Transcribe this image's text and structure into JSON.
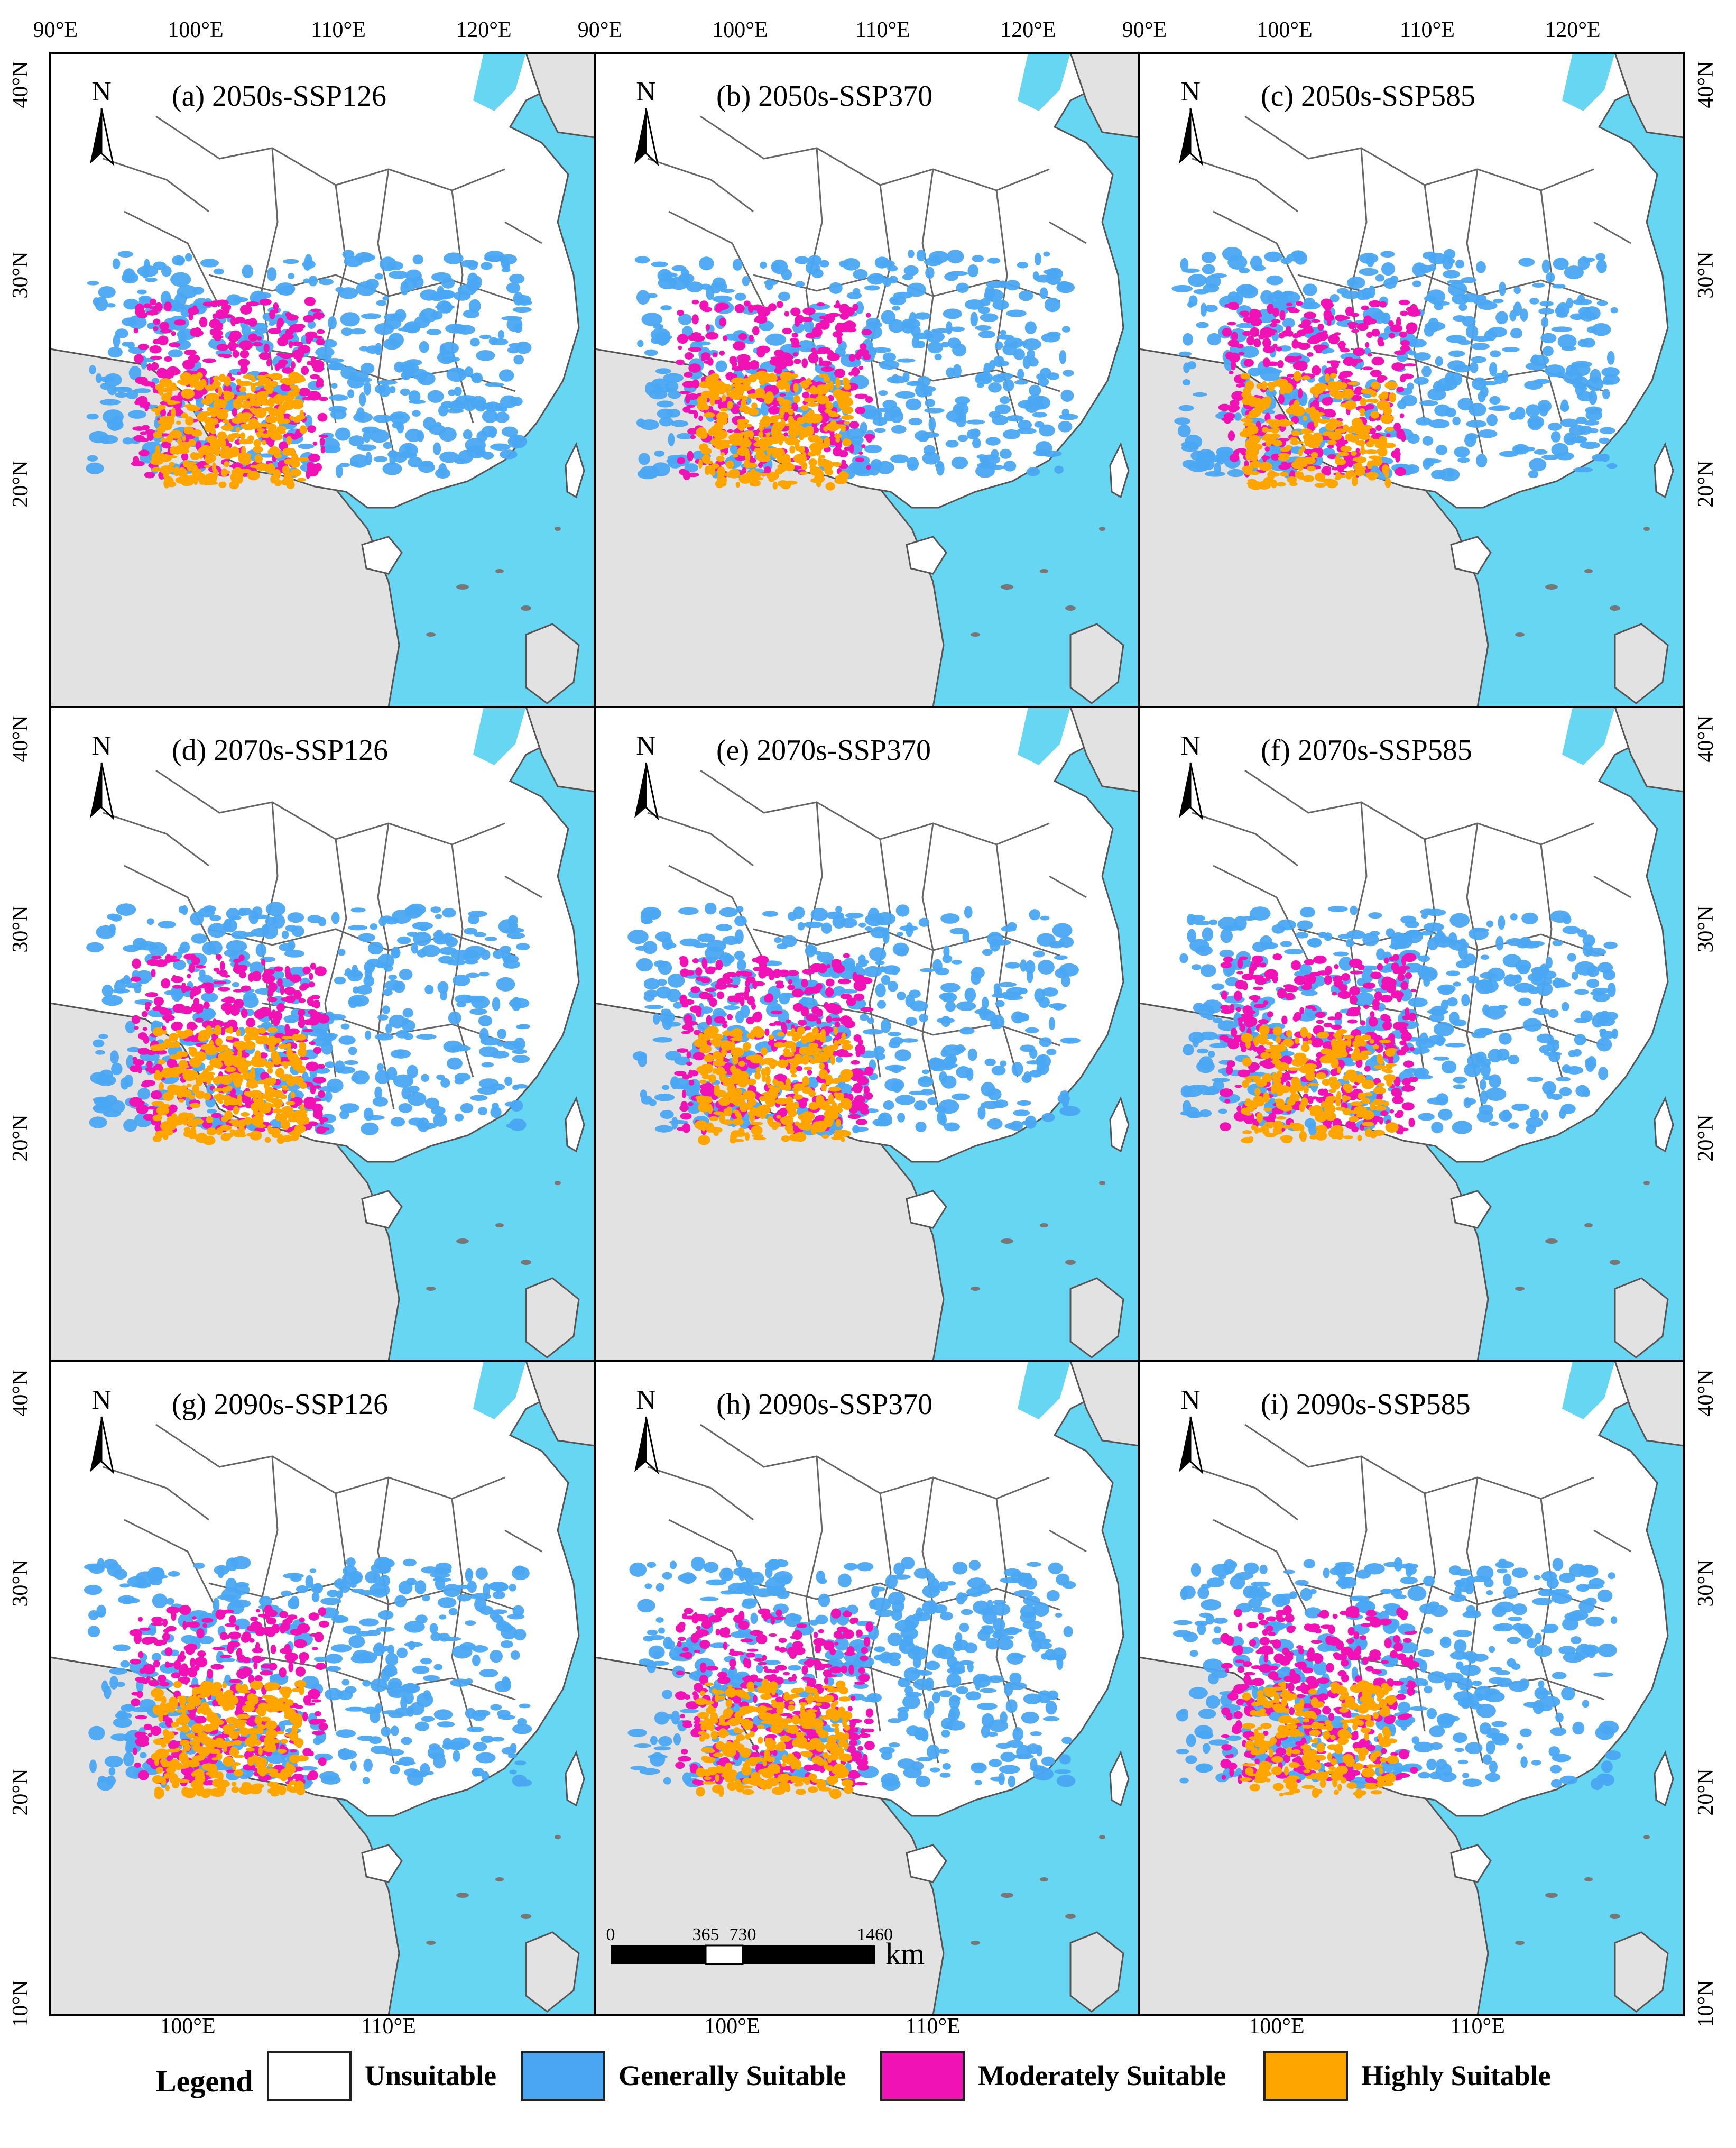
{
  "figure": {
    "panels": [
      {
        "label": "(a) 2050s-SSP126"
      },
      {
        "label": "(b) 2050s-SSP370"
      },
      {
        "label": "(c) 2050s-SSP585"
      },
      {
        "label": "(d) 2070s-SSP126"
      },
      {
        "label": "(e) 2070s-SSP370"
      },
      {
        "label": "(f) 2070s-SSP585"
      },
      {
        "label": "(g) 2090s-SSP126"
      },
      {
        "label": "(h) 2090s-SSP370"
      },
      {
        "label": "(i) 2090s-SSP585"
      }
    ],
    "north_arrow_label": "N",
    "top_longitude_labels": [
      "90°E",
      "100°E",
      "110°E",
      "120°E"
    ],
    "bottom_longitude_labels": [
      "100°E",
      "110°E"
    ],
    "latitude_labels_full": [
      "40°N",
      "30°N",
      "20°N",
      "10°N"
    ],
    "latitude_labels_lower": [
      "40°N",
      "30°N",
      "20°N"
    ],
    "scale_bar": {
      "ticks": [
        "0",
        "365",
        "730",
        "1460"
      ],
      "unit": "km"
    }
  },
  "legend": {
    "title": "Legend",
    "items": [
      {
        "label": "Unsuitable",
        "color": "#ffffff"
      },
      {
        "label": "Generally Suitable",
        "color": "#4aa6f2"
      },
      {
        "label": "Moderately Suitable",
        "color": "#f012b4"
      },
      {
        "label": "Highly Suitable",
        "color": "#ffa500"
      }
    ]
  },
  "colors": {
    "sea": "#66d6f2",
    "foreign_land": "#e2e2e2",
    "china_land": "#ffffff",
    "boundary": "#555555"
  }
}
